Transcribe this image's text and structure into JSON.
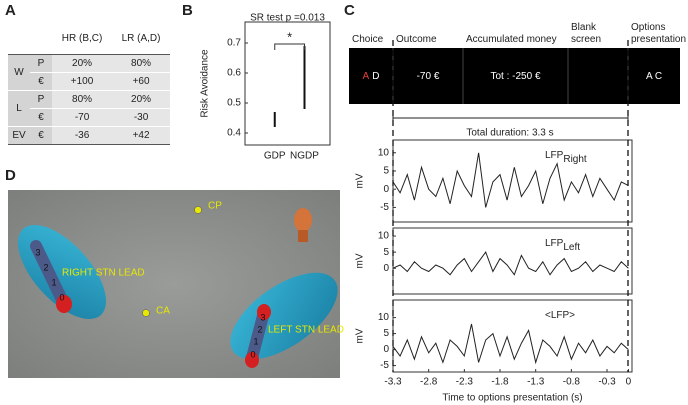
{
  "panel_labels": [
    "A",
    "B",
    "C",
    "D"
  ],
  "table": {
    "header": [
      "HR (B,C)",
      "LR (A,D)"
    ],
    "groups": [
      {
        "name": "W",
        "rows": [
          [
            "P",
            "20%",
            "80%"
          ],
          [
            "€",
            "+100",
            "+60"
          ]
        ]
      },
      {
        "name": "L",
        "rows": [
          [
            "P",
            "80%",
            "20%"
          ],
          [
            "€",
            "-70",
            "-30"
          ]
        ]
      },
      {
        "name": "EV",
        "rows": [
          [
            "€",
            "-36",
            "+42"
          ]
        ]
      }
    ]
  },
  "timeline": {
    "segments": [
      {
        "label": "Choice",
        "content": [
          "A",
          "D"
        ],
        "highlight_color": "#e8403a"
      },
      {
        "label": "Outcome",
        "content": [
          "-70 €"
        ]
      },
      {
        "label": "Accumulated money",
        "content": [
          "Tot : -250 €"
        ]
      },
      {
        "label": "Blank screen",
        "content": []
      },
      {
        "label": "Options presentation",
        "content": [
          "A C"
        ]
      }
    ],
    "duration_label": "Total duration: 3.3 s"
  },
  "brain_image": {
    "landmarks": [
      "CP",
      "CA"
    ],
    "right_lead": {
      "label": "RIGHT STN LEAD",
      "contacts": [
        3,
        2,
        1,
        0
      ]
    },
    "left_lead": {
      "label": "LEFT STN LEAD",
      "contacts": [
        3,
        2,
        1,
        0
      ]
    }
  },
  "chart_data": [
    {
      "type": "range",
      "title": "SR test p =0.013",
      "ylabel": "Risk Avoidance",
      "categories": [
        "GDP",
        "NGDP"
      ],
      "low": [
        0.42,
        0.48
      ],
      "high": [
        0.47,
        0.69
      ],
      "color": "#111111",
      "ylim": [
        0.36,
        0.77
      ],
      "yticks": [
        0.4,
        0.5,
        0.6,
        0.7
      ],
      "significance": "*"
    },
    {
      "type": "line",
      "label": "LFP",
      "label_sub": "Right",
      "ylabel": "mV",
      "color": "#222222",
      "x": [
        -3.3,
        -3.2,
        -3.1,
        -3,
        -2.9,
        -2.8,
        -2.7,
        -2.6,
        -2.5,
        -2.4,
        -2.3,
        -2.2,
        -2.1,
        -2,
        -1.9,
        -1.8,
        -1.7,
        -1.6,
        -1.5,
        -1.4,
        -1.3,
        -1.2,
        -1.1,
        -1,
        -0.9,
        -0.8,
        -0.7,
        -0.6,
        -0.5,
        -0.4,
        -0.3,
        -0.2,
        -0.1,
        0
      ],
      "values": [
        2,
        -1,
        4,
        -3,
        6,
        0,
        -2,
        3,
        -4,
        5,
        1,
        -2,
        10,
        -5,
        2,
        4,
        -3,
        6,
        -2,
        1,
        5,
        -4,
        3,
        7,
        -3,
        2,
        -1,
        4,
        -2,
        3,
        0,
        -3,
        2,
        1
      ],
      "xlim": [
        -3.3,
        0.05
      ],
      "ylim": [
        -9,
        13.5
      ],
      "yticks": [
        -5,
        0,
        5,
        10
      ]
    },
    {
      "type": "line",
      "label": "LFP",
      "label_sub": "Left",
      "ylabel": "mV",
      "color": "#222222",
      "x": [
        -3.3,
        -3.2,
        -3.1,
        -3,
        -2.9,
        -2.8,
        -2.7,
        -2.6,
        -2.5,
        -2.4,
        -2.3,
        -2.2,
        -2.1,
        -2,
        -1.9,
        -1.8,
        -1.7,
        -1.6,
        -1.5,
        -1.4,
        -1.3,
        -1.2,
        -1.1,
        -1,
        -0.9,
        -0.8,
        -0.7,
        -0.6,
        -0.5,
        -0.4,
        -0.3,
        -0.2,
        -0.1,
        0
      ],
      "values": [
        0,
        1,
        -1,
        2,
        0,
        -1,
        1,
        0,
        -2,
        1,
        3,
        -1,
        2,
        5,
        -1,
        3,
        1,
        -2,
        4,
        0,
        -1,
        2,
        -2,
        1,
        3,
        -1,
        0,
        2,
        -1,
        1,
        0,
        -1,
        2,
        0
      ],
      "xlim": [
        -3.3,
        0.05
      ],
      "ylim": [
        -8,
        12.5
      ],
      "yticks": [
        0,
        5,
        10
      ]
    },
    {
      "type": "line",
      "label": "<LFP>",
      "ylabel": "mV",
      "xlabel": "Time to options presentation (s)",
      "color": "#222222",
      "x": [
        -3.3,
        -3.2,
        -3.1,
        -3,
        -2.9,
        -2.8,
        -2.7,
        -2.6,
        -2.5,
        -2.4,
        -2.3,
        -2.2,
        -2.1,
        -2,
        -1.9,
        -1.8,
        -1.7,
        -1.6,
        -1.5,
        -1.4,
        -1.3,
        -1.2,
        -1.1,
        -1,
        -0.9,
        -0.8,
        -0.7,
        -0.6,
        -0.5,
        -0.4,
        -0.3,
        -0.2,
        -0.1,
        0
      ],
      "values": [
        1,
        -2,
        3,
        -3,
        4,
        -1,
        2,
        -4,
        3,
        1,
        -2,
        8,
        -4,
        3,
        5,
        -2,
        4,
        -3,
        2,
        6,
        -4,
        3,
        1,
        -2,
        4,
        -3,
        2,
        -1,
        3,
        -2,
        1,
        -1,
        2,
        0
      ],
      "xlim": [
        -3.3,
        0.05
      ],
      "ylim": [
        -7,
        15.5
      ],
      "yticks": [
        -5,
        0,
        5,
        10
      ],
      "xticks": [
        -3.3,
        -2.8,
        -2.3,
        -1.8,
        -1.3,
        -0.8,
        -0.3,
        0
      ]
    }
  ]
}
